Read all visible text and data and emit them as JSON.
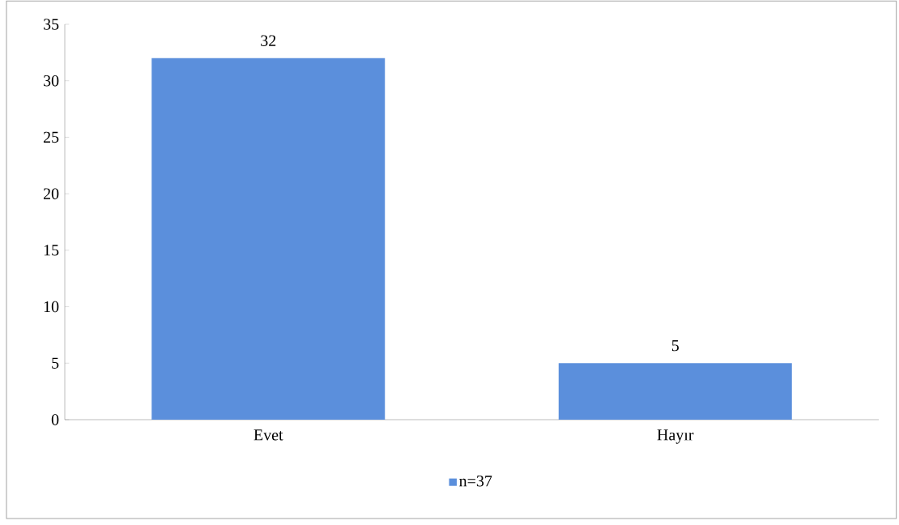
{
  "chart_data": {
    "type": "bar",
    "categories": [
      "Evet",
      "Hayır"
    ],
    "series": [
      {
        "name": "n=37",
        "color": "#5b8fdc",
        "values": [
          32,
          5
        ]
      }
    ],
    "ylim": [
      0,
      35
    ],
    "yticks": [
      0,
      5,
      10,
      15,
      20,
      25,
      30,
      35
    ],
    "data_labels": true,
    "legend": "bottom",
    "grid": false
  }
}
